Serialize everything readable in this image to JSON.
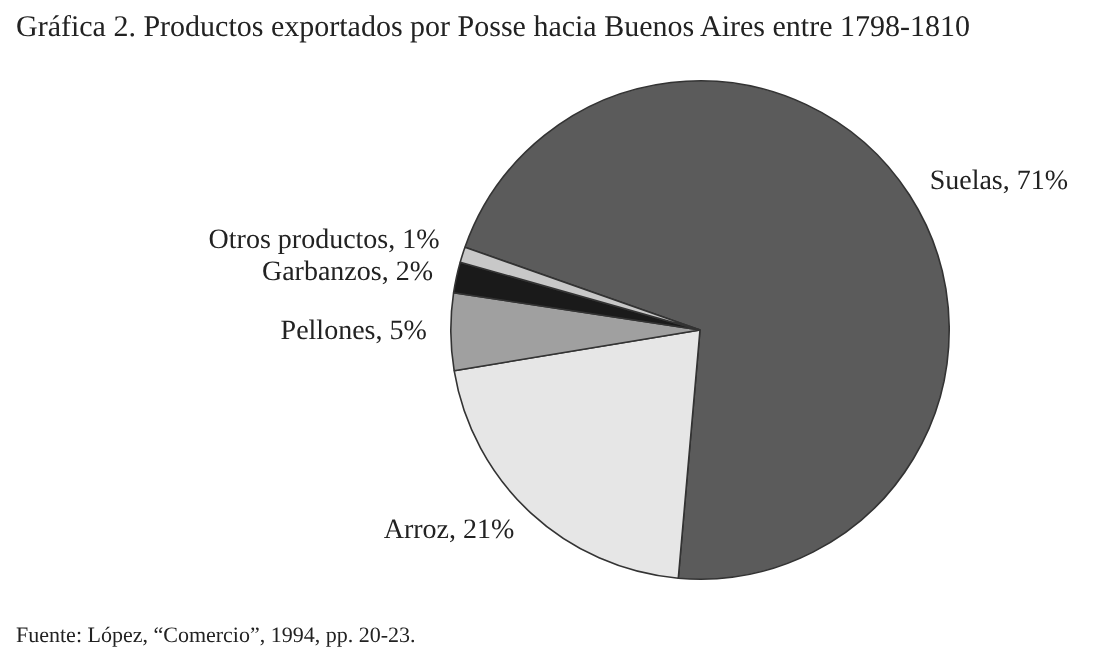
{
  "chart_data": {
    "type": "pie",
    "title": "Gráfica 2. Productos exportados por Posse hacia Buenos Aires entre 1798-1810",
    "categories": [
      "Suelas",
      "Arroz",
      "Pellones",
      "Garbanzos",
      "Otros productos"
    ],
    "values": [
      71,
      21,
      5,
      2,
      1
    ],
    "value_labels": [
      "71%",
      "21%",
      "5%",
      "2%",
      "1%"
    ],
    "colors": [
      "#5b5b5b",
      "#e6e6e6",
      "#a0a0a0",
      "#1a1a1a",
      "#c8c8c8"
    ],
    "legend": false,
    "annotations": [
      "Fuente: López, “Comercio”, 1994, pp. 20-23."
    ]
  }
}
